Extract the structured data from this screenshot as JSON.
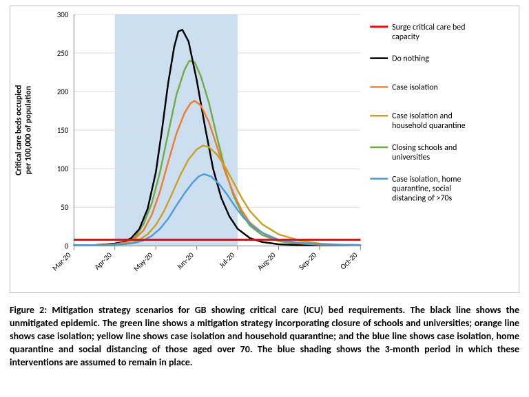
{
  "chart": {
    "type": "line",
    "background_color": "#ffffff",
    "plot_border_color": "#bfbfbf",
    "gridline_color": "#d9d9d9",
    "shaded_region": {
      "x_start": 1,
      "x_end": 4,
      "fill": "#c6dcef",
      "opacity": 0.9
    },
    "x": {
      "categories": [
        "Mar-20",
        "Apr-20",
        "May-20",
        "Jun-20",
        "Jul-20",
        "Aug-20",
        "Sep-20",
        "Oct-20"
      ],
      "label_rotation_deg": -45,
      "tick_fontsize": 11
    },
    "y": {
      "label": "Critical care beds occupied\nper 100,000 of population",
      "label_fontsize": 12,
      "label_fontweight": "bold",
      "min": 0,
      "max": 300,
      "tick_step": 50,
      "tick_fontsize": 11
    },
    "surge_line_y": 8,
    "line_width": 2.5,
    "series": [
      {
        "id": "surge",
        "label": "Surge critical care bed capacity",
        "color": "#ff0000",
        "type": "horizontal_line",
        "y": 8,
        "line_width": 3
      },
      {
        "id": "do_nothing",
        "label": "Do nothing",
        "color": "#000000",
        "points": [
          [
            0.0,
            1
          ],
          [
            0.5,
            1
          ],
          [
            0.8,
            2
          ],
          [
            1.0,
            3
          ],
          [
            1.2,
            5
          ],
          [
            1.4,
            10
          ],
          [
            1.6,
            22
          ],
          [
            1.8,
            48
          ],
          [
            2.0,
            95
          ],
          [
            2.15,
            150
          ],
          [
            2.3,
            210
          ],
          [
            2.45,
            258
          ],
          [
            2.55,
            278
          ],
          [
            2.65,
            280
          ],
          [
            2.8,
            265
          ],
          [
            3.0,
            215
          ],
          [
            3.2,
            155
          ],
          [
            3.4,
            100
          ],
          [
            3.6,
            62
          ],
          [
            3.8,
            38
          ],
          [
            4.0,
            22
          ],
          [
            4.3,
            10
          ],
          [
            4.6,
            5
          ],
          [
            5.0,
            2
          ],
          [
            5.5,
            1
          ],
          [
            6.0,
            1
          ],
          [
            7.0,
            1
          ]
        ]
      },
      {
        "id": "case_isolation",
        "label": "Case isolation",
        "color": "#ed7d31",
        "points": [
          [
            0.0,
            1
          ],
          [
            0.6,
            1
          ],
          [
            1.0,
            2
          ],
          [
            1.3,
            5
          ],
          [
            1.5,
            10
          ],
          [
            1.7,
            20
          ],
          [
            1.9,
            40
          ],
          [
            2.1,
            70
          ],
          [
            2.3,
            108
          ],
          [
            2.5,
            145
          ],
          [
            2.7,
            172
          ],
          [
            2.85,
            185
          ],
          [
            2.95,
            188
          ],
          [
            3.1,
            182
          ],
          [
            3.3,
            160
          ],
          [
            3.5,
            128
          ],
          [
            3.7,
            95
          ],
          [
            3.9,
            68
          ],
          [
            4.1,
            46
          ],
          [
            4.3,
            30
          ],
          [
            4.6,
            17
          ],
          [
            5.0,
            8
          ],
          [
            5.5,
            3
          ],
          [
            6.0,
            1.5
          ],
          [
            7.0,
            1
          ]
        ]
      },
      {
        "id": "ci_hq",
        "label": "Case isolation and household quarantine",
        "color": "#c9a227",
        "points": [
          [
            0.0,
            1
          ],
          [
            0.7,
            1
          ],
          [
            1.1,
            2
          ],
          [
            1.4,
            4
          ],
          [
            1.6,
            8
          ],
          [
            1.8,
            15
          ],
          [
            2.0,
            27
          ],
          [
            2.2,
            45
          ],
          [
            2.4,
            68
          ],
          [
            2.6,
            92
          ],
          [
            2.8,
            112
          ],
          [
            3.0,
            125
          ],
          [
            3.15,
            130
          ],
          [
            3.3,
            128
          ],
          [
            3.5,
            118
          ],
          [
            3.7,
            102
          ],
          [
            3.9,
            82
          ],
          [
            4.1,
            62
          ],
          [
            4.3,
            45
          ],
          [
            4.6,
            28
          ],
          [
            5.0,
            15
          ],
          [
            5.5,
            7
          ],
          [
            6.0,
            3
          ],
          [
            6.5,
            1.5
          ],
          [
            7.0,
            1
          ]
        ]
      },
      {
        "id": "schools",
        "label": "Closing schools and universities",
        "color": "#70ad47",
        "points": [
          [
            0.0,
            1
          ],
          [
            0.6,
            1
          ],
          [
            1.0,
            2
          ],
          [
            1.3,
            5
          ],
          [
            1.5,
            12
          ],
          [
            1.7,
            28
          ],
          [
            1.9,
            55
          ],
          [
            2.1,
            95
          ],
          [
            2.3,
            145
          ],
          [
            2.5,
            195
          ],
          [
            2.7,
            228
          ],
          [
            2.82,
            240
          ],
          [
            2.95,
            238
          ],
          [
            3.1,
            220
          ],
          [
            3.3,
            185
          ],
          [
            3.5,
            140
          ],
          [
            3.7,
            98
          ],
          [
            3.9,
            65
          ],
          [
            4.1,
            42
          ],
          [
            4.3,
            26
          ],
          [
            4.6,
            14
          ],
          [
            5.0,
            6
          ],
          [
            5.5,
            2.5
          ],
          [
            6.0,
            1.5
          ],
          [
            7.0,
            1
          ]
        ]
      },
      {
        "id": "ci_hq_sd70",
        "label": "Case isolation, home quarantine, social distancing of >70s",
        "color": "#4f9bd9",
        "points": [
          [
            0.0,
            1
          ],
          [
            0.8,
            1
          ],
          [
            1.2,
            2
          ],
          [
            1.5,
            4
          ],
          [
            1.7,
            7
          ],
          [
            1.9,
            13
          ],
          [
            2.1,
            22
          ],
          [
            2.3,
            35
          ],
          [
            2.5,
            52
          ],
          [
            2.7,
            68
          ],
          [
            2.9,
            82
          ],
          [
            3.05,
            90
          ],
          [
            3.18,
            93
          ],
          [
            3.35,
            90
          ],
          [
            3.55,
            80
          ],
          [
            3.75,
            66
          ],
          [
            3.95,
            50
          ],
          [
            4.15,
            36
          ],
          [
            4.4,
            24
          ],
          [
            4.7,
            14
          ],
          [
            5.0,
            8
          ],
          [
            5.5,
            4
          ],
          [
            6.0,
            2
          ],
          [
            6.5,
            1.5
          ],
          [
            7.0,
            1
          ]
        ]
      }
    ],
    "legend": {
      "x": 0.67,
      "y_start": 0.08,
      "line_length": 26,
      "row_gap": 42,
      "fontsize": 12,
      "order": [
        "surge",
        "do_nothing",
        "case_isolation",
        "ci_hq",
        "schools",
        "ci_hq_sd70"
      ]
    }
  },
  "caption": "Figure 2: Mitigation strategy scenarios for GB showing critical care (ICU) bed requirements. The black line shows the unmitigated epidemic. The green line shows a mitigation strategy incorporating closure of schools and universities; orange line shows case isolation; yellow line shows case isolation and household quarantine; and the blue line shows case isolation, home quarantine and social distancing of those aged over 70. The blue shading shows the 3-month period in which these interventions are assumed to remain in place."
}
